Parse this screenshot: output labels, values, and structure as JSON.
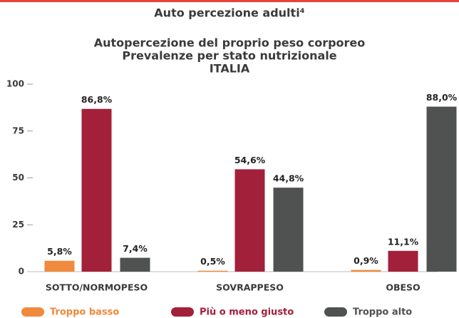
{
  "chart_data": {
    "type": "bar",
    "title": "Auto percezione adulti⁴",
    "subtitle": [
      "Autopercezione del proprio peso corporeo",
      "Prevalenze per stato nutrizionale",
      "ITALIA"
    ],
    "categories": [
      "SOTTO/NORMOPESO",
      "SOVRAPPESO",
      "OBESO"
    ],
    "series": [
      {
        "name": "Troppo basso",
        "color": "#f08a3c",
        "values": [
          5.8,
          0.5,
          0.9
        ],
        "value_labels": [
          "5,8%",
          "0,5%",
          "0,9%"
        ]
      },
      {
        "name": "Più o meno giusto",
        "color": "#a3203a",
        "values": [
          86.8,
          54.6,
          11.1
        ],
        "value_labels": [
          "86,8%",
          "54,6%",
          "11,1%"
        ]
      },
      {
        "name": "Troppo alto",
        "color": "#4f5250",
        "values": [
          7.4,
          44.8,
          88.0
        ],
        "value_labels": [
          "7,4%",
          "44,8%",
          "88,0%"
        ]
      }
    ],
    "ylim": [
      0,
      100
    ],
    "yticks": [
      0,
      25,
      50,
      75,
      100
    ],
    "legend": "bottom"
  }
}
